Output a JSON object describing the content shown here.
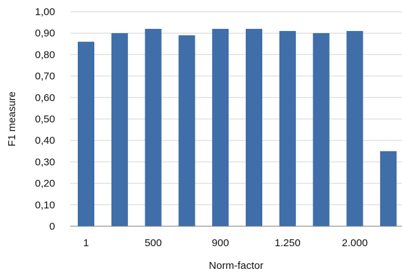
{
  "chart_data": {
    "type": "bar",
    "xlabel": "Norm-factor",
    "ylabel": "F1 measure",
    "x_tick_labels": [
      "1",
      "",
      "500",
      "",
      "900",
      "",
      "1.250",
      "",
      "2.000",
      ""
    ],
    "values": [
      0.86,
      0.9,
      0.92,
      0.89,
      0.92,
      0.92,
      0.91,
      0.9,
      0.91,
      0.35
    ],
    "ylim": [
      0,
      1.0
    ],
    "y_ticks": [
      0,
      0.1,
      0.2,
      0.3,
      0.4,
      0.5,
      0.6,
      0.7,
      0.8,
      0.9,
      1.0
    ],
    "y_tick_labels": [
      "0",
      "0,10",
      "0,20",
      "0,30",
      "0,40",
      "0,50",
      "0,60",
      "0,70",
      "0,80",
      "0,90",
      "1,00"
    ],
    "grid": true,
    "legend": "none",
    "bar_color": "#3f6ea8"
  }
}
